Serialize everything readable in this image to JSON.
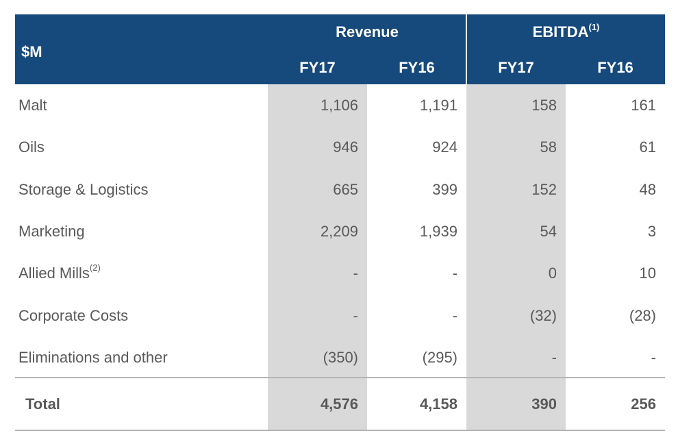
{
  "table": {
    "unit_label": "$M",
    "groups": {
      "revenue": "Revenue",
      "ebitda": "EBITDA",
      "ebitda_note": "(1)"
    },
    "periods": [
      "FY17",
      "FY16",
      "FY17",
      "FY16"
    ],
    "rows": [
      {
        "label": "Malt",
        "note": "",
        "values": [
          "1,106",
          "1,191",
          "158",
          "161"
        ]
      },
      {
        "label": "Oils",
        "note": "",
        "values": [
          "946",
          "924",
          "58",
          "61"
        ]
      },
      {
        "label": "Storage & Logistics",
        "note": "",
        "values": [
          "665",
          "399",
          "152",
          "48"
        ]
      },
      {
        "label": "Marketing",
        "note": "",
        "values": [
          "2,209",
          "1,939",
          "54",
          "3"
        ]
      },
      {
        "label": "Allied Mills",
        "note": "(2)",
        "values": [
          "-",
          "-",
          "0",
          "10"
        ]
      },
      {
        "label": "Corporate Costs",
        "note": "",
        "values": [
          "-",
          "-",
          "(32)",
          "(28)"
        ]
      },
      {
        "label": "Eliminations and other",
        "note": "",
        "values": [
          "(350)",
          "(295)",
          "-",
          "-"
        ]
      }
    ],
    "total": {
      "label": "Total",
      "values": [
        "4,576",
        "4,158",
        "390",
        "256"
      ]
    }
  },
  "colors": {
    "header_bg": "#174a7c",
    "header_text": "#ffffff",
    "shade": "#d9d9d9",
    "body_text": "#595959",
    "rule": "#b4b4b4"
  }
}
